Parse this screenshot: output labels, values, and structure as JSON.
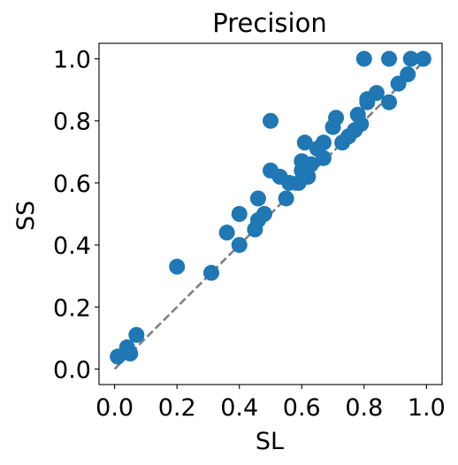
{
  "chart_data": {
    "type": "scatter",
    "title": "Precision",
    "xlabel": "SL",
    "ylabel": "SS",
    "xlim": [
      -0.05,
      1.05
    ],
    "ylim": [
      -0.05,
      1.05
    ],
    "xticks": [
      "0.0",
      "0.2",
      "0.4",
      "0.6",
      "0.8",
      "1.0"
    ],
    "yticks": [
      "0.0",
      "0.2",
      "0.4",
      "0.6",
      "0.8",
      "1.0"
    ],
    "grid": false,
    "marker_color": "#1f77b4",
    "reference_line": {
      "style": "dashed",
      "color": "#808080",
      "from": [
        0,
        0
      ],
      "to": [
        1,
        1
      ]
    },
    "points": [
      {
        "x": 0.01,
        "y": 0.04
      },
      {
        "x": 0.04,
        "y": 0.07
      },
      {
        "x": 0.05,
        "y": 0.05
      },
      {
        "x": 0.07,
        "y": 0.11
      },
      {
        "x": 0.2,
        "y": 0.33
      },
      {
        "x": 0.31,
        "y": 0.31
      },
      {
        "x": 0.36,
        "y": 0.44
      },
      {
        "x": 0.4,
        "y": 0.4
      },
      {
        "x": 0.4,
        "y": 0.5
      },
      {
        "x": 0.45,
        "y": 0.45
      },
      {
        "x": 0.46,
        "y": 0.48
      },
      {
        "x": 0.46,
        "y": 0.55
      },
      {
        "x": 0.48,
        "y": 0.5
      },
      {
        "x": 0.5,
        "y": 0.64
      },
      {
        "x": 0.5,
        "y": 0.8
      },
      {
        "x": 0.53,
        "y": 0.62
      },
      {
        "x": 0.55,
        "y": 0.55
      },
      {
        "x": 0.56,
        "y": 0.6
      },
      {
        "x": 0.59,
        "y": 0.6
      },
      {
        "x": 0.6,
        "y": 0.64
      },
      {
        "x": 0.6,
        "y": 0.67
      },
      {
        "x": 0.61,
        "y": 0.73
      },
      {
        "x": 0.62,
        "y": 0.62
      },
      {
        "x": 0.63,
        "y": 0.66
      },
      {
        "x": 0.65,
        "y": 0.71
      },
      {
        "x": 0.67,
        "y": 0.68
      },
      {
        "x": 0.67,
        "y": 0.73
      },
      {
        "x": 0.7,
        "y": 0.78
      },
      {
        "x": 0.71,
        "y": 0.81
      },
      {
        "x": 0.73,
        "y": 0.73
      },
      {
        "x": 0.75,
        "y": 0.75
      },
      {
        "x": 0.77,
        "y": 0.77
      },
      {
        "x": 0.78,
        "y": 0.82
      },
      {
        "x": 0.79,
        "y": 0.79
      },
      {
        "x": 0.8,
        "y": 1.0
      },
      {
        "x": 0.81,
        "y": 0.86
      },
      {
        "x": 0.81,
        "y": 0.87
      },
      {
        "x": 0.84,
        "y": 0.89
      },
      {
        "x": 0.88,
        "y": 0.86
      },
      {
        "x": 0.88,
        "y": 1.0
      },
      {
        "x": 0.91,
        "y": 0.92
      },
      {
        "x": 0.94,
        "y": 0.95
      },
      {
        "x": 0.95,
        "y": 1.0
      },
      {
        "x": 0.99,
        "y": 1.0
      }
    ]
  }
}
